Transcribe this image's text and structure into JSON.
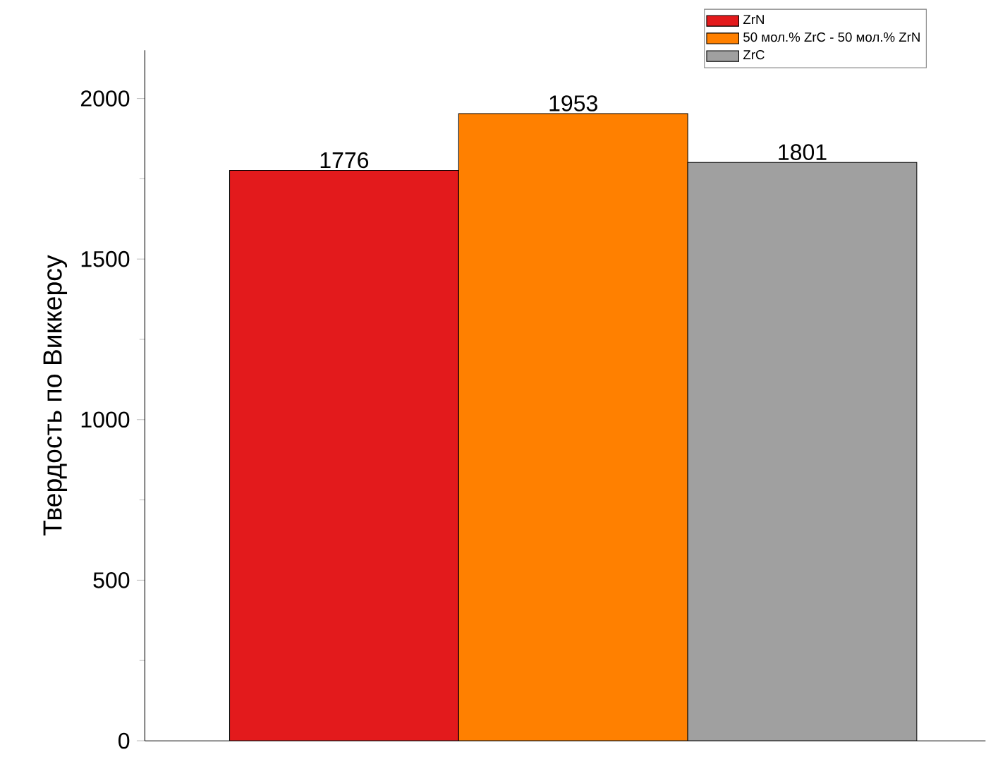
{
  "chart_data": {
    "type": "bar",
    "ylabel": "Твердость по Виккерсу",
    "categories": [
      null,
      null,
      null
    ],
    "series": [
      {
        "name": "ZrN",
        "color": "#e31a1c",
        "values": [
          1776,
          null,
          null
        ]
      },
      {
        "name": "50 мол.% ZrC - 50 мол.% ZrN",
        "color": "#ff8000",
        "values": [
          null,
          1953,
          null
        ]
      },
      {
        "name": "ZrC",
        "color": "#a0a0a0",
        "values": [
          null,
          null,
          1801
        ]
      }
    ],
    "ylim": [
      0,
      2150
    ],
    "yticks": [
      0,
      500,
      1000,
      1500,
      2000
    ],
    "data_labels": true,
    "legend": "top right",
    "grid": false
  }
}
